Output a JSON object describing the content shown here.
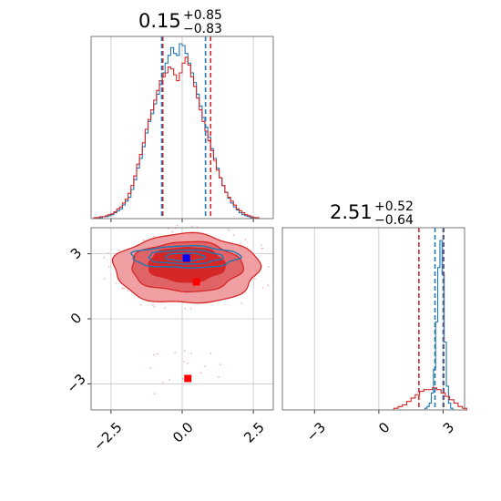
{
  "colors": {
    "red": "#d62728",
    "blue": "#1f77b4",
    "red_fill_light": "#f0a0a2",
    "red_fill_dark": "#d62728",
    "marker_blue": "#0000ff",
    "marker_red": "#ff0000",
    "grid": "#c8c8c8",
    "axis": "#777777"
  },
  "chart_data": [
    {
      "type": "histogram",
      "panel": "top-left",
      "title": {
        "value": "0.15",
        "upper": "+0.85",
        "lower": "−0.83"
      },
      "xlim": [
        -3.2,
        3.2
      ],
      "grid": true,
      "x_ticks": [
        -2.5,
        0.0,
        2.5
      ],
      "bin_edges": [
        -3.2,
        2.8
      ],
      "series": [
        {
          "color": "#1f77b4",
          "style": "step",
          "counts": [
            0,
            0,
            1,
            1,
            2,
            2,
            3,
            4,
            6,
            8,
            10,
            14,
            18,
            22,
            30,
            40,
            52,
            62,
            74,
            88,
            100,
            108,
            118,
            128,
            138,
            150,
            160,
            168,
            176,
            170,
            168,
            180,
            178,
            170,
            160,
            150,
            140,
            128,
            116,
            104,
            94,
            84,
            72,
            62,
            52,
            42,
            34,
            27,
            21,
            16,
            12,
            9,
            6,
            4,
            3,
            2,
            1,
            1,
            0,
            0
          ]
        },
        {
          "color": "#d62728",
          "style": "step",
          "counts": [
            0,
            1,
            1,
            2,
            2,
            3,
            4,
            5,
            7,
            10,
            12,
            16,
            20,
            26,
            34,
            44,
            56,
            66,
            78,
            92,
            102,
            112,
            122,
            132,
            142,
            146,
            150,
            156,
            154,
            148,
            142,
            150,
            160,
            166,
            158,
            146,
            136,
            124,
            112,
            100,
            90,
            80,
            70,
            60,
            50,
            42,
            34,
            27,
            22,
            18,
            14,
            10,
            8,
            6,
            4,
            3,
            2,
            1,
            1,
            0
          ]
        }
      ],
      "quantile_lines": [
        {
          "color": "#d62728",
          "values": [
            -0.68,
            0.15,
            1.0
          ]
        },
        {
          "color": "#1f77b4",
          "values": [
            -0.72,
            0.12,
            0.82
          ]
        }
      ]
    },
    {
      "type": "histogram",
      "panel": "bottom-right",
      "title": {
        "value": "2.51",
        "upper": "+0.52",
        "lower": "−0.64"
      },
      "xlim": [
        -4.5,
        4.0
      ],
      "grid": true,
      "x_ticks": [
        -3,
        0,
        3
      ],
      "series": [
        {
          "color": "#1f77b4",
          "style": "step",
          "x": [
            2.0,
            2.1,
            2.2,
            2.3,
            2.4,
            2.5,
            2.6,
            2.7,
            2.8,
            2.9,
            3.0,
            3.1,
            3.2,
            3.3,
            3.4,
            3.5
          ],
          "counts": [
            0,
            0,
            1,
            2,
            4,
            10,
            24,
            52,
            84,
            100,
            80,
            40,
            14,
            4,
            1,
            0
          ]
        },
        {
          "color": "#d62728",
          "style": "step",
          "x": [
            0.6,
            0.8,
            1.0,
            1.2,
            1.4,
            1.6,
            1.8,
            2.0,
            2.2,
            2.4,
            2.6,
            2.8,
            3.0,
            3.2,
            3.4,
            3.6,
            3.8,
            4.0
          ],
          "counts": [
            0,
            1,
            2,
            3,
            5,
            7,
            9,
            11,
            12,
            12,
            13,
            12,
            10,
            8,
            6,
            4,
            2,
            1
          ]
        }
      ],
      "quantile_lines": [
        {
          "color": "#d62728",
          "values": [
            1.87,
            2.51,
            3.03
          ]
        },
        {
          "color": "#1f77b4",
          "values": [
            2.62,
            2.83,
            3.0
          ]
        }
      ]
    },
    {
      "type": "contour",
      "panel": "bottom-left",
      "xlim": [
        -3.2,
        3.2
      ],
      "ylim": [
        -4.2,
        4.2
      ],
      "grid": true,
      "x_ticks": [
        -2.5,
        0.0,
        2.5
      ],
      "y_ticks": [
        -3,
        0,
        3
      ],
      "red_levels": [
        {
          "cx": 0.15,
          "cy": 2.3,
          "rx": 2.55,
          "ry": 1.6,
          "fill": "#f0a0a2"
        },
        {
          "cx": 0.15,
          "cy": 2.4,
          "rx": 1.95,
          "ry": 1.15,
          "fill": "#e06466"
        },
        {
          "cx": 0.15,
          "cy": 2.5,
          "rx": 1.35,
          "ry": 0.8,
          "fill": "#d62728"
        }
      ],
      "blue_levels": [
        {
          "cx": 0.1,
          "cy": 2.85,
          "rx": 1.9,
          "ry": 0.5
        },
        {
          "cx": 0.1,
          "cy": 2.85,
          "rx": 1.3,
          "ry": 0.32
        },
        {
          "cx": 0.1,
          "cy": 2.85,
          "rx": 0.7,
          "ry": 0.18
        }
      ],
      "markers": [
        {
          "x": 0.15,
          "y": 2.8,
          "color": "#0000ff"
        },
        {
          "x": 0.5,
          "y": 1.7,
          "color": "#ff0000"
        },
        {
          "x": 0.2,
          "y": -2.75,
          "color": "#ff0000"
        }
      ]
    }
  ]
}
